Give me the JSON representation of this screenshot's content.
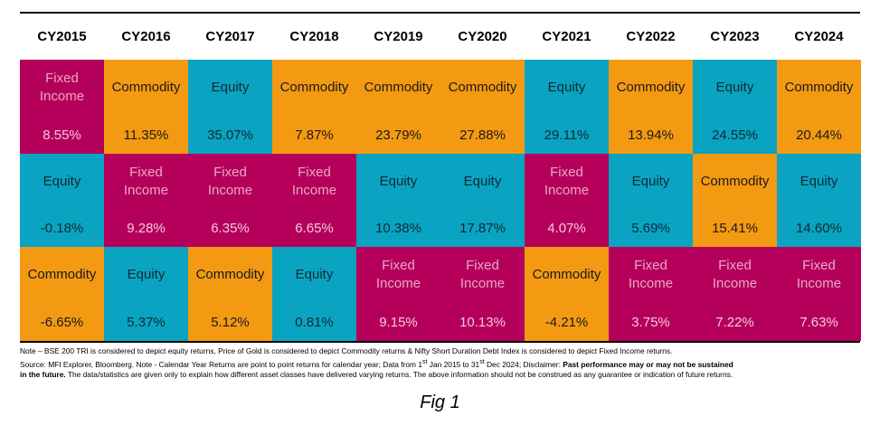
{
  "chart_data": {
    "type": "table",
    "columns": [
      "CY2015",
      "CY2016",
      "CY2017",
      "CY2018",
      "CY2019",
      "CY2020",
      "CY2021",
      "CY2022",
      "CY2023",
      "CY2024"
    ],
    "rows": [
      [
        {
          "asset": "Fixed Income",
          "return": "8.55%"
        },
        {
          "asset": "Commodity",
          "return": "11.35%"
        },
        {
          "asset": "Equity",
          "return": "35.07%"
        },
        {
          "asset": "Commodity",
          "return": "7.87%"
        },
        {
          "asset": "Commodity",
          "return": "23.79%"
        },
        {
          "asset": "Commodity",
          "return": "27.88%"
        },
        {
          "asset": "Equity",
          "return": "29.11%"
        },
        {
          "asset": "Commodity",
          "return": "13.94%"
        },
        {
          "asset": "Equity",
          "return": "24.55%"
        },
        {
          "asset": "Commodity",
          "return": "20.44%"
        }
      ],
      [
        {
          "asset": "Equity",
          "return": "-0.18%"
        },
        {
          "asset": "Fixed Income",
          "return": "9.28%"
        },
        {
          "asset": "Fixed Income",
          "return": "6.35%"
        },
        {
          "asset": "Fixed Income",
          "return": "6.65%"
        },
        {
          "asset": "Equity",
          "return": "10.38%"
        },
        {
          "asset": "Equity",
          "return": "17.87%"
        },
        {
          "asset": "Fixed Income",
          "return": "4.07%"
        },
        {
          "asset": "Equity",
          "return": "5.69%"
        },
        {
          "asset": "Commodity",
          "return": "15.41%"
        },
        {
          "asset": "Equity",
          "return": "14.60%"
        }
      ],
      [
        {
          "asset": "Commodity",
          "return": "-6.65%"
        },
        {
          "asset": "Equity",
          "return": "5.37%"
        },
        {
          "asset": "Commodity",
          "return": "5.12%"
        },
        {
          "asset": "Equity",
          "return": "0.81%"
        },
        {
          "asset": "Fixed Income",
          "return": "9.15%"
        },
        {
          "asset": "Fixed Income",
          "return": "10.13%"
        },
        {
          "asset": "Commodity",
          "return": "-4.21%"
        },
        {
          "asset": "Fixed Income",
          "return": "3.75%"
        },
        {
          "asset": "Fixed Income",
          "return": "7.22%"
        },
        {
          "asset": "Fixed Income",
          "return": "7.63%"
        }
      ]
    ],
    "colors": {
      "Fixed Income": "#b5005b",
      "Equity": "#0aa3c2",
      "Commodity": "#f39a12"
    }
  },
  "notes": {
    "line1": "Note – BSE 200 TRI is considered to depict equity returns, Price of Gold is considered to depict Commodity returns & Nifty Short Duration Debt Index is considered to depict Fixed Income returns.",
    "line2_a": "Source: MFI Explorer, Bloomberg. Note - Calendar Year Returns are point to point returns for calendar year; Data from 1",
    "line2_sup1": "st",
    "line2_b": " Jan 2015 to 31",
    "line2_sup2": "st",
    "line2_c": " Dec 2024; Disclaimer: ",
    "line2_bold": "Past performance may or may not be sustained",
    "line3_bold": "in the future.",
    "line3_rest": " The data/statistics are given only to explain how different asset classes have delivered varying returns. The above information should not be construed as any guarantee or indication of future returns."
  },
  "caption": "Fig 1"
}
